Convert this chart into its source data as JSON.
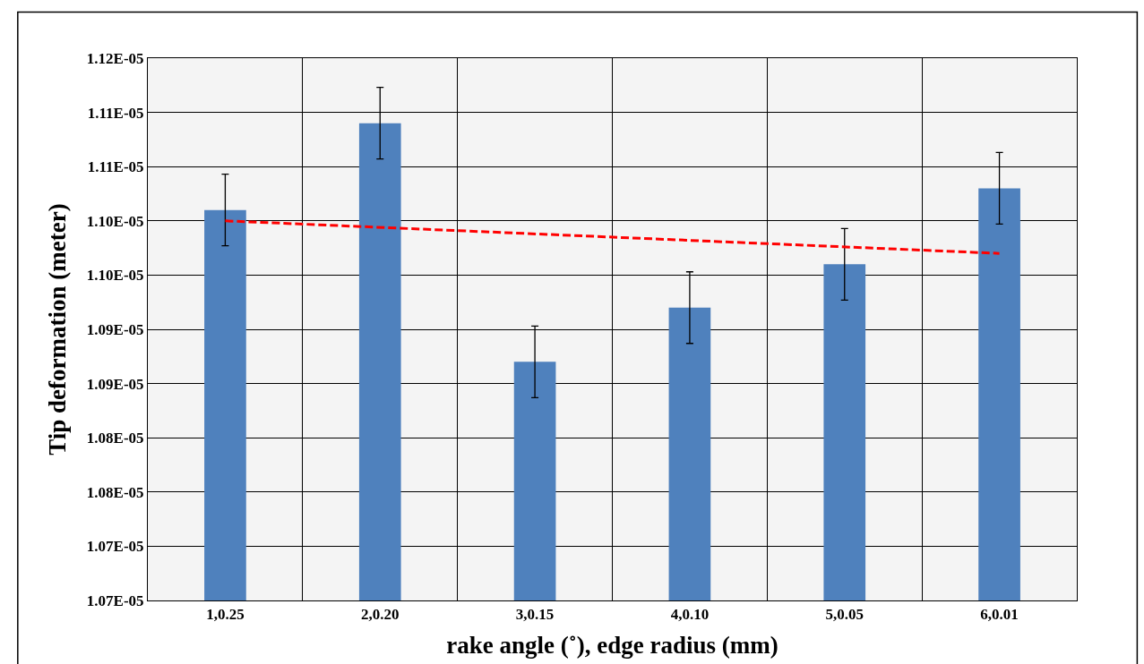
{
  "chart_data": {
    "type": "bar",
    "xlabel": "rake angle (˚), edge radius (mm)",
    "ylabel": "Tip deformation (meter)",
    "categories": [
      "1,0.25",
      "2,0.20",
      "3,0.15",
      "4,0.10",
      "5,0.05",
      "6,0.01"
    ],
    "series": [
      {
        "color": "#4f81bd",
        "values": [
          1.106e-05,
          1.114e-05,
          1.092e-05,
          1.097e-05,
          1.101e-05,
          1.108e-05
        ],
        "errors": [
          3.3e-08,
          3.3e-08,
          3.3e-08,
          3.3e-08,
          3.3e-08,
          3.3e-08
        ]
      },
      {
        "type": "line",
        "color": "#ff0000",
        "line_style": "dashed",
        "marker": "none",
        "x": [
          "1,0.25",
          "6,0.01"
        ],
        "values": [
          1.105e-05,
          1.102e-05
        ]
      }
    ],
    "ylim": [
      1.07e-05,
      1.12e-05
    ],
    "yticks": [
      {
        "value": 1.07e-05,
        "label": "1.07E-05"
      },
      {
        "value": 1.075e-05,
        "label": "1.07E-05"
      },
      {
        "value": 1.08e-05,
        "label": "1.08E-05"
      },
      {
        "value": 1.085e-05,
        "label": "1.08E-05"
      },
      {
        "value": 1.09e-05,
        "label": "1.09E-05"
      },
      {
        "value": 1.095e-05,
        "label": "1.09E-05"
      },
      {
        "value": 1.1e-05,
        "label": "1.10E-05"
      },
      {
        "value": 1.105e-05,
        "label": "1.10E-05"
      },
      {
        "value": 1.11e-05,
        "label": "1.11E-05"
      },
      {
        "value": 1.115e-05,
        "label": "1.11E-05"
      },
      {
        "value": 1.12e-05,
        "label": "1.12E-05"
      }
    ],
    "grid": true,
    "legend": false
  }
}
